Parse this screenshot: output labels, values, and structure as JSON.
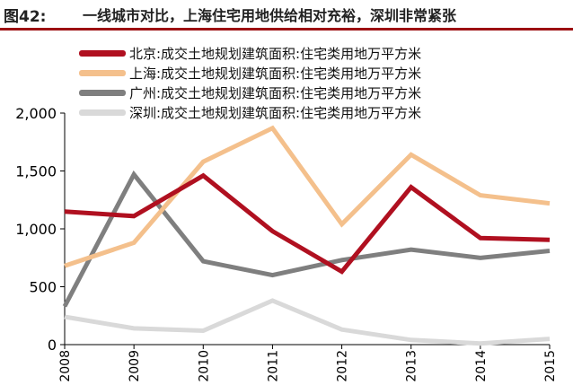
{
  "header": {
    "label": "图42:",
    "title": "一线城市对比，上海住宅用地供给相对充裕，深圳非常紧张"
  },
  "colors": {
    "accent": "#9c0f12",
    "beijing": "#b01020",
    "shanghai": "#f4c08c",
    "guangzhou": "#7f7f7f",
    "shenzhen": "#d9d9d9"
  },
  "chart_data": {
    "type": "line",
    "title": "",
    "xlabel": "",
    "ylabel": "",
    "x": [
      "2008",
      "2009",
      "2010",
      "2011",
      "2012",
      "2013",
      "2014",
      "2015"
    ],
    "ylim": [
      0,
      2000
    ],
    "yticks": [
      "0",
      "500",
      "1,000",
      "1,500",
      "2,000"
    ],
    "legend_position": "top-left",
    "series": [
      {
        "name": "北京:成交土地规划建筑面积:住宅类用地万平方米",
        "color": "#b01020",
        "values": [
          1150,
          1110,
          1460,
          980,
          630,
          1360,
          920,
          905
        ]
      },
      {
        "name": "上海:成交土地规划建筑面积:住宅类用地万平方米",
        "color": "#f4c08c",
        "values": [
          680,
          880,
          1580,
          1870,
          1040,
          1640,
          1290,
          1220
        ]
      },
      {
        "name": "广州:成交土地规划建筑面积:住宅类用地万平方米",
        "color": "#7f7f7f",
        "values": [
          330,
          1470,
          720,
          600,
          730,
          820,
          750,
          810
        ]
      },
      {
        "name": "深圳:成交土地规划建筑面积:住宅类用地万平方米",
        "color": "#d9d9d9",
        "values": [
          240,
          140,
          120,
          380,
          130,
          40,
          10,
          50
        ]
      }
    ]
  }
}
